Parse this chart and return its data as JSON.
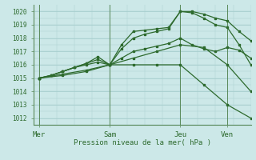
{
  "xlabel": "Pression niveau de la mer( hPa )",
  "background_color": "#cce8e8",
  "grid_color": "#aacfcf",
  "line_color": "#2d6a2d",
  "tick_color": "#2d6a2d",
  "label_color": "#2d6a2d",
  "spine_color": "#5a8a5a",
  "ylim": [
    1011.5,
    1020.5
  ],
  "yticks": [
    1012,
    1013,
    1014,
    1015,
    1016,
    1017,
    1018,
    1019,
    1020
  ],
  "xtick_labels": [
    "Mer",
    "Sam",
    "Jeu",
    "Ven"
  ],
  "xtick_positions": [
    0,
    12,
    24,
    32
  ],
  "vline_positions": [
    0,
    12,
    24,
    32
  ],
  "xlim": [
    -1,
    36
  ],
  "lines": [
    {
      "x": [
        0,
        2,
        4,
        6,
        8,
        10,
        12,
        14,
        16,
        18,
        20,
        22,
        24,
        26,
        28,
        30,
        32,
        34,
        36
      ],
      "y": [
        1015.0,
        1015.2,
        1015.5,
        1015.8,
        1016.1,
        1016.6,
        1016.0,
        1017.5,
        1018.5,
        1018.6,
        1018.7,
        1018.8,
        1020.0,
        1019.9,
        1019.5,
        1019.0,
        1018.8,
        1017.5,
        1016.0
      ]
    },
    {
      "x": [
        0,
        2,
        4,
        6,
        8,
        10,
        12,
        14,
        16,
        18,
        20,
        22,
        24,
        26,
        28,
        30,
        32,
        34,
        36
      ],
      "y": [
        1015.0,
        1015.2,
        1015.5,
        1015.8,
        1016.1,
        1016.4,
        1016.0,
        1017.2,
        1018.0,
        1018.3,
        1018.5,
        1018.7,
        1020.0,
        1020.0,
        1019.8,
        1019.5,
        1019.3,
        1018.5,
        1017.8
      ]
    },
    {
      "x": [
        0,
        2,
        4,
        6,
        8,
        10,
        12,
        14,
        16,
        18,
        20,
        22,
        24,
        26,
        28,
        30,
        32,
        34,
        36
      ],
      "y": [
        1015.0,
        1015.2,
        1015.5,
        1015.8,
        1016.0,
        1016.2,
        1016.0,
        1016.5,
        1017.0,
        1017.2,
        1017.4,
        1017.6,
        1018.0,
        1017.5,
        1017.2,
        1017.0,
        1017.3,
        1017.1,
        1016.5
      ]
    },
    {
      "x": [
        0,
        4,
        8,
        12,
        16,
        20,
        24,
        28,
        32,
        36
      ],
      "y": [
        1015.0,
        1015.3,
        1015.6,
        1016.0,
        1016.5,
        1017.0,
        1017.5,
        1017.3,
        1016.0,
        1014.0
      ]
    },
    {
      "x": [
        0,
        4,
        8,
        12,
        16,
        20,
        24,
        28,
        32,
        36
      ],
      "y": [
        1015.0,
        1015.2,
        1015.5,
        1016.0,
        1016.0,
        1016.0,
        1016.0,
        1014.5,
        1013.0,
        1012.0
      ]
    }
  ]
}
